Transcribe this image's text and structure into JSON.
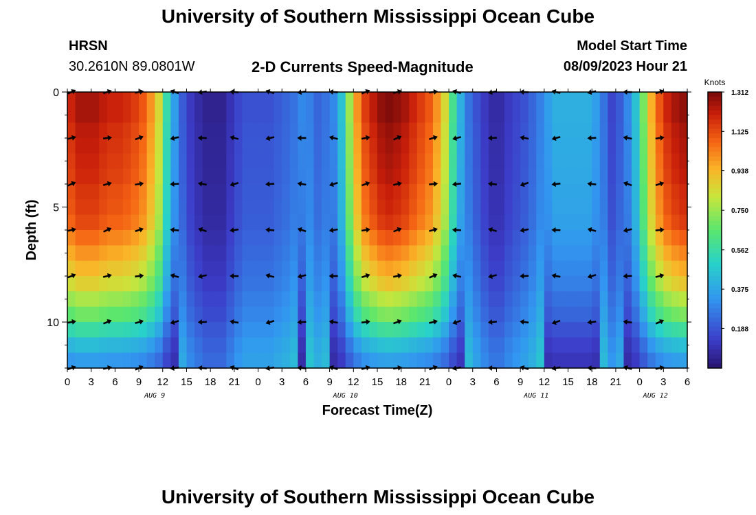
{
  "header": {
    "title": "University of Southern Mississippi Ocean Cube",
    "station": "HRSN",
    "coordinates": "30.2610N  89.0801W",
    "subtitle": "2-D Currents Speed-Magnitude",
    "model_label": "Model Start Time",
    "model_time": "08/09/2023 Hour 21"
  },
  "footer": {
    "title": "University of Southern Mississippi Ocean Cube"
  },
  "chart_data": {
    "type": "heatmap",
    "title": "2-D Currents Speed-Magnitude",
    "xlabel": "Forecast Time(Z)",
    "ylabel": "Depth (ft)",
    "x_ticks": [
      "0",
      "3",
      "6",
      "9",
      "12",
      "15",
      "18",
      "21",
      "0",
      "3",
      "6",
      "9",
      "12",
      "15",
      "18",
      "21",
      "0",
      "3",
      "6",
      "9",
      "12",
      "15",
      "18",
      "21",
      "0",
      "3",
      "6"
    ],
    "x_range_hours": [
      0,
      78
    ],
    "date_labels": [
      {
        "label": "AUG 9",
        "hour": 11
      },
      {
        "label": "AUG 10",
        "hour": 35
      },
      {
        "label": "AUG 11",
        "hour": 59
      },
      {
        "label": "AUG 12",
        "hour": 74
      }
    ],
    "y_ticks": [
      0,
      5,
      10
    ],
    "ylim": [
      0,
      12
    ],
    "colorbar": {
      "unit": "Knots",
      "ticks": [
        "1.312",
        "1.125",
        "0.938",
        "0.750",
        "0.562",
        "0.375",
        "0.188"
      ],
      "range": [
        0.0,
        1.312
      ]
    },
    "columns_hours": [
      0,
      1,
      2,
      3,
      4,
      5,
      6,
      7,
      8,
      9,
      10,
      11,
      12,
      13,
      14,
      15,
      16,
      17,
      18,
      19,
      20,
      21,
      22,
      23,
      24,
      25,
      26,
      27,
      28,
      29,
      30,
      31,
      32,
      33,
      34,
      35,
      36,
      37,
      38,
      39,
      40,
      41,
      42,
      43,
      44,
      45,
      46,
      47,
      48,
      49,
      50,
      51,
      52,
      53,
      54,
      55,
      56,
      57,
      58,
      59,
      60,
      61,
      62,
      63,
      64,
      65,
      66,
      67,
      68,
      69,
      70,
      71,
      72,
      73,
      74,
      75,
      76,
      77
    ],
    "speed_profile_knots": [
      1.2,
      1.25,
      1.25,
      1.25,
      1.22,
      1.2,
      1.2,
      1.18,
      1.15,
      1.1,
      1.0,
      0.85,
      0.55,
      0.35,
      0.2,
      0.12,
      0.08,
      0.05,
      0.05,
      0.05,
      0.1,
      0.15,
      0.18,
      0.18,
      0.18,
      0.18,
      0.2,
      0.22,
      0.25,
      0.3,
      0.28,
      0.22,
      0.25,
      0.3,
      0.45,
      0.75,
      1.0,
      1.15,
      1.22,
      1.28,
      1.3,
      1.28,
      1.25,
      1.2,
      1.15,
      1.1,
      1.0,
      0.85,
      0.6,
      0.4,
      0.25,
      0.18,
      0.12,
      0.08,
      0.08,
      0.12,
      0.15,
      0.18,
      0.22,
      0.28,
      0.35,
      0.4,
      0.4,
      0.4,
      0.4,
      0.4,
      0.35,
      0.25,
      0.15,
      0.2,
      0.3,
      0.45,
      0.7,
      0.95,
      1.1,
      1.2,
      1.25,
      1.28
    ],
    "depth_factor_rows": [
      1.0,
      1.0,
      0.98,
      0.97,
      0.96,
      0.95,
      0.93,
      0.92,
      0.9,
      0.85,
      0.8,
      0.75,
      0.7,
      0.62,
      0.55,
      0.45,
      0.35,
      0.28
    ],
    "arrow_rows_depth_ft": [
      0,
      2,
      4,
      6,
      8,
      10,
      12
    ],
    "arrow_columns_hours": [
      0,
      4.5,
      8.5,
      13,
      16.5,
      20.5,
      25,
      29,
      33,
      37,
      41,
      45.5,
      48.5,
      53,
      57,
      61,
      65.5,
      70,
      74
    ]
  }
}
